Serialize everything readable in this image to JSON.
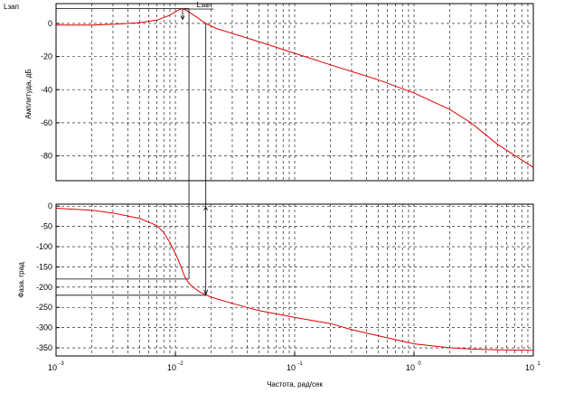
{
  "corner_label": "Lзап",
  "annotation": "Lзап",
  "chart_data": [
    {
      "type": "line",
      "panel": "magnitude",
      "ylabel": "Амплитуда, дБ",
      "xlabel": "",
      "x_scale": "log",
      "xlim": [
        0.001,
        10
      ],
      "ylim": [
        -95,
        12
      ],
      "grid": true,
      "yticks": [
        0,
        -20,
        -40,
        -60,
        -80
      ],
      "ytick_labels": [
        "0",
        "-20",
        "-40",
        "-60",
        "-80"
      ],
      "line_color": "#e00000",
      "x": [
        0.001,
        0.002,
        0.003,
        0.005,
        0.007,
        0.009,
        0.0105,
        0.0115,
        0.013,
        0.015,
        0.018,
        0.022,
        0.03,
        0.05,
        0.1,
        0.2,
        0.3,
        0.5,
        1,
        2,
        3,
        5,
        10
      ],
      "y": [
        -1,
        -1,
        -0.5,
        0.5,
        2,
        5,
        8,
        9,
        7,
        4,
        0,
        -3,
        -6,
        -11,
        -18,
        -25,
        -29,
        -34,
        -42,
        -52,
        -60,
        -73,
        -87
      ]
    },
    {
      "type": "line",
      "panel": "phase",
      "ylabel": "Фаза, град",
      "xlabel": "Частота, рад/сек",
      "x_scale": "log",
      "xlim": [
        0.001,
        10
      ],
      "ylim": [
        -370,
        5
      ],
      "grid": true,
      "yticks": [
        0,
        -50,
        -100,
        -150,
        -200,
        -250,
        -300,
        -350
      ],
      "ytick_labels": [
        "0",
        "-50",
        "-100",
        "-150",
        "-200",
        "-250",
        "-300",
        "-350"
      ],
      "xticks": [
        0.001,
        0.01,
        0.1,
        1,
        10
      ],
      "xtick_labels": [
        {
          "base": "10",
          "exp": "-3"
        },
        {
          "base": "10",
          "exp": "-2"
        },
        {
          "base": "10",
          "exp": "-1"
        },
        {
          "base": "10",
          "exp": "0"
        },
        {
          "base": "10",
          "exp": "1"
        }
      ],
      "line_color": "#e00000",
      "x": [
        0.001,
        0.002,
        0.003,
        0.005,
        0.007,
        0.008,
        0.009,
        0.0105,
        0.012,
        0.013,
        0.014,
        0.016,
        0.02,
        0.03,
        0.05,
        0.1,
        0.2,
        0.3,
        0.5,
        1,
        2,
        3,
        5,
        10
      ],
      "y": [
        -5,
        -10,
        -17,
        -30,
        -48,
        -65,
        -90,
        -130,
        -175,
        -190,
        -200,
        -212,
        -225,
        -240,
        -258,
        -275,
        -290,
        -305,
        -320,
        -340,
        -350,
        -353,
        -355,
        -356
      ]
    }
  ]
}
